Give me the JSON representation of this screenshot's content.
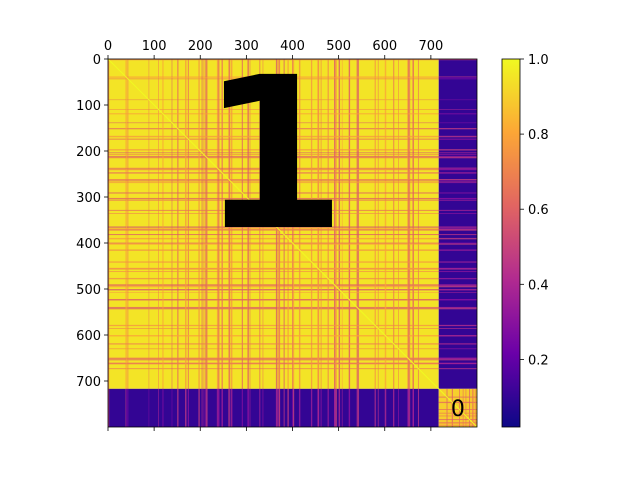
{
  "chart_data": {
    "type": "heatmap",
    "title": "",
    "xlabel": "",
    "ylabel": "",
    "n": 800,
    "x_range": [
      0,
      800
    ],
    "y_range": [
      0,
      800
    ],
    "x_ticks": [
      0,
      100,
      200,
      300,
      400,
      500,
      600,
      700
    ],
    "y_ticks": [
      0,
      100,
      200,
      300,
      400,
      500,
      600,
      700
    ],
    "x_ticks_position": "top",
    "x_bottom_tick_marks": true,
    "clusters": [
      {
        "label": "1",
        "start": 0,
        "end": 717,
        "within_value": 0.95
      },
      {
        "label": "0",
        "start": 717,
        "end": 800,
        "within_value": 0.9
      }
    ],
    "between_cluster_value": 0.1,
    "diagonal_value": 1.0,
    "colormap": "plasma",
    "colormap_stops": [
      "#0d0887",
      "#6a00a8",
      "#b12a90",
      "#e16462",
      "#fca636",
      "#f0f921"
    ],
    "colorbar": {
      "range": [
        0.02,
        1.0
      ],
      "ticks": [
        0.2,
        0.4,
        0.6,
        0.8,
        1.0
      ],
      "tick_labels": [
        "0.2",
        "0.4",
        "0.6",
        "0.8",
        "1.0"
      ]
    },
    "grid": false,
    "legend": "none"
  }
}
